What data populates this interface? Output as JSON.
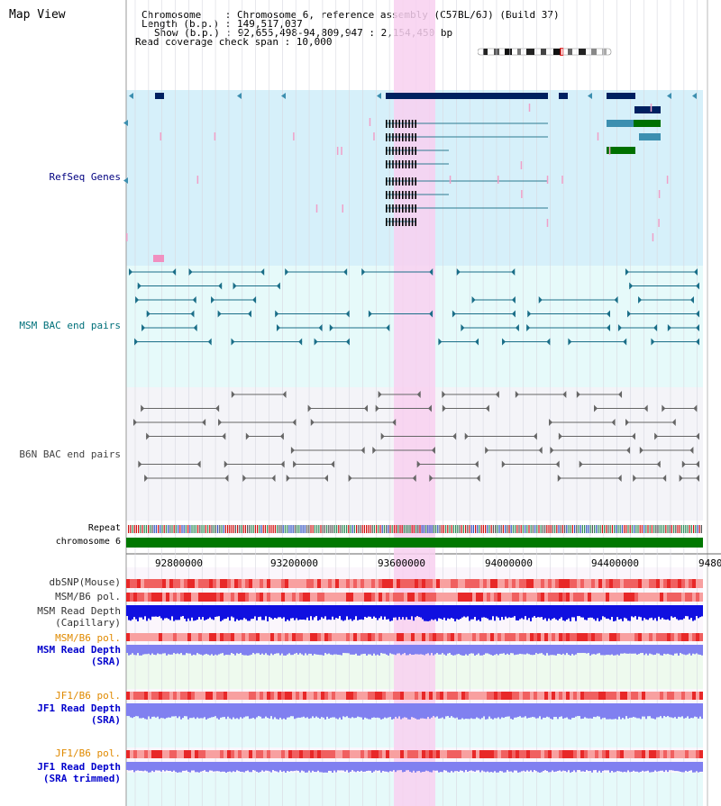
{
  "page": {
    "title": "Map View"
  },
  "info": {
    "chromosome_line": "Chromosome    : Chromosome 6, reference assembly (C57BL/6J) (Build 37)",
    "length_line": "Length (b.p.) : 149,517,037",
    "show_line": "Show (b.p.) : 92,655,498-94,809,947 : 2,154,450 bp",
    "coverage_line": "Read coverage check span : 10,000"
  },
  "tracks": {
    "refseq": "RefSeq Genes",
    "msm_bac": "MSM BAC end pairs",
    "b6n_bac": "B6N BAC end pairs",
    "repeat": "Repeat",
    "chromosome": "chromosome 6",
    "dbsnp": "dbSNP(Mouse)",
    "msm_b6_pol": "MSM/B6 pol.",
    "msm_depth_cap_1": "MSM Read Depth",
    "msm_depth_cap_2": "(Capillary)",
    "msm_b6_pol2": "MSM/B6 pol.",
    "msm_depth_sra_1": "MSM Read Depth",
    "msm_depth_sra_2": "(SRA)",
    "jf1_b6_pol": "JF1/B6 pol.",
    "jf1_depth_sra_1": "JF1 Read Depth",
    "jf1_depth_sra_2": "(SRA)",
    "jf1_b6_pol2": "JF1/B6 pol.",
    "jf1_depth_trim_1": "JF1 Read Depth",
    "jf1_depth_trim_2": "(SRA trimmed)"
  },
  "axis": {
    "ticks": [
      "92800000",
      "93200000",
      "93600000",
      "94000000",
      "94400000",
      "9480"
    ]
  },
  "colors": {
    "refseq_bg": "#d6f0fa",
    "msm_bg": "#e6fafa",
    "b6n_bg": "#f4f4f8",
    "highlight": "#f8d0f0",
    "gene_navy": "#002060",
    "gene_teal": "#3c8fb0",
    "gene_green": "#007000",
    "chromosome": "#007800",
    "snp": "#f08080",
    "depth_dark": "#1010e0",
    "depth_light": "#8080f0"
  }
}
